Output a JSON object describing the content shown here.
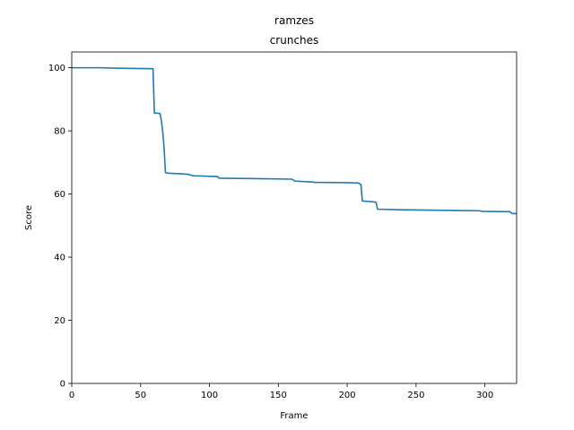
{
  "chart_data": {
    "type": "line",
    "title": "ramzes",
    "subtitle": "crunches",
    "xlabel": "Frame",
    "ylabel": "Score",
    "xlim": [
      0,
      323
    ],
    "ylim": [
      0,
      105
    ],
    "xticks": [
      0,
      50,
      100,
      150,
      200,
      250,
      300
    ],
    "yticks": [
      0,
      20,
      40,
      60,
      80,
      100
    ],
    "grid": false,
    "series_color": "#1f77b4",
    "series": [
      {
        "x": [
          0,
          20,
          40,
          59,
          60,
          62,
          64,
          65,
          66,
          67,
          68,
          70,
          80,
          85,
          88,
          100,
          106,
          107,
          130,
          160,
          162,
          175,
          176,
          200,
          208,
          210,
          211,
          220,
          221,
          222,
          240,
          296,
          298,
          318,
          320,
          323
        ],
        "y": [
          100,
          100,
          99.8,
          99.7,
          85.6,
          85.6,
          85.5,
          83.5,
          80,
          75,
          66.8,
          66.6,
          66.4,
          66.2,
          65.8,
          65.6,
          65.5,
          65.0,
          64.9,
          64.7,
          64.1,
          63.8,
          63.7,
          63.6,
          63.5,
          63.0,
          57.8,
          57.5,
          57.3,
          55.2,
          55.0,
          54.7,
          54.5,
          54.4,
          53.8,
          53.8
        ]
      }
    ]
  }
}
